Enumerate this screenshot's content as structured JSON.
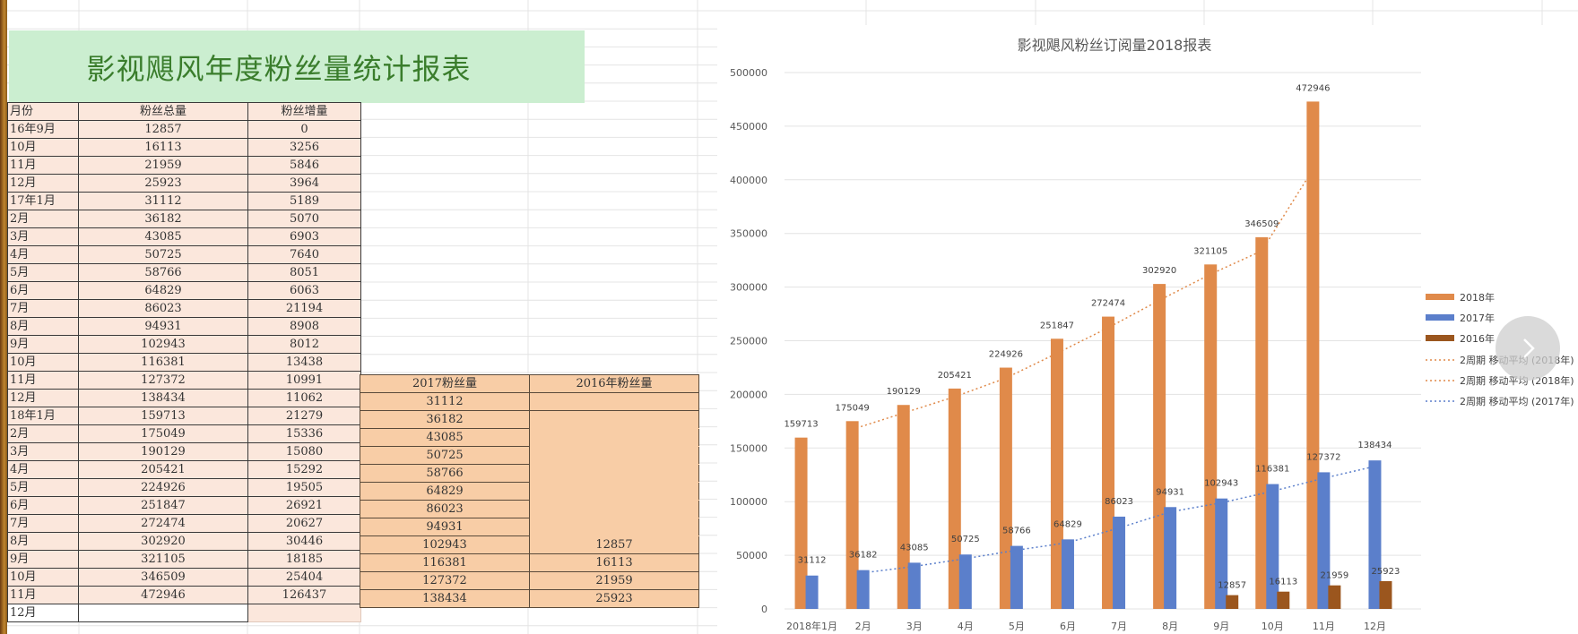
{
  "sheet_title": "影视飓风年度粉丝量统计报表",
  "table": {
    "headers": [
      "月份",
      "粉丝总量",
      "粉丝增量"
    ],
    "rows": [
      [
        "16年9月",
        "12857",
        "0"
      ],
      [
        "10月",
        "16113",
        "3256"
      ],
      [
        "11月",
        "21959",
        "5846"
      ],
      [
        "12月",
        "25923",
        "3964"
      ],
      [
        "17年1月",
        "31112",
        "5189"
      ],
      [
        "2月",
        "36182",
        "5070"
      ],
      [
        "3月",
        "43085",
        "6903"
      ],
      [
        "4月",
        "50725",
        "7640"
      ],
      [
        "5月",
        "58766",
        "8051"
      ],
      [
        "6月",
        "64829",
        "6063"
      ],
      [
        "7月",
        "86023",
        "21194"
      ],
      [
        "8月",
        "94931",
        "8908"
      ],
      [
        "9月",
        "102943",
        "8012"
      ],
      [
        "10月",
        "116381",
        "13438"
      ],
      [
        "11月",
        "127372",
        "10991"
      ],
      [
        "12月",
        "138434",
        "11062"
      ],
      [
        "18年1月",
        "159713",
        "21279"
      ],
      [
        "2月",
        "175049",
        "15336"
      ],
      [
        "3月",
        "190129",
        "15080"
      ],
      [
        "4月",
        "205421",
        "15292"
      ],
      [
        "5月",
        "224926",
        "19505"
      ],
      [
        "6月",
        "251847",
        "26921"
      ],
      [
        "7月",
        "272474",
        "20627"
      ],
      [
        "8月",
        "302920",
        "30446"
      ],
      [
        "9月",
        "321105",
        "18185"
      ],
      [
        "10月",
        "346509",
        "25404"
      ],
      [
        "11月",
        "472946",
        "126437"
      ],
      [
        "12月",
        "",
        ""
      ]
    ]
  },
  "year_table": {
    "headers": [
      "2017粉丝量",
      "2016年粉丝量"
    ],
    "col2017": [
      "31112",
      "36182",
      "43085",
      "50725",
      "58766",
      "64829",
      "86023",
      "94931",
      "102943",
      "116381",
      "127372",
      "138434"
    ],
    "col2016": [
      "",
      "",
      "",
      "",
      "",
      "",
      "",
      "",
      "12857",
      "16113",
      "21959",
      "25923"
    ]
  },
  "chart_data": {
    "type": "bar",
    "title": "影视飓风粉丝订阅量2018报表",
    "categories": [
      "2018年1月",
      "2月",
      "3月",
      "4月",
      "5月",
      "6月",
      "7月",
      "8月",
      "9月",
      "10月",
      "11月",
      "12月"
    ],
    "ylim": [
      0,
      500000
    ],
    "yticks": [
      "0",
      "50000",
      "100000",
      "150000",
      "200000",
      "250000",
      "300000",
      "350000",
      "400000",
      "450000",
      "500000"
    ],
    "grid": true,
    "legend_position": "right",
    "series": [
      {
        "name": "2018年",
        "color": "#e08a4a",
        "values": [
          159713,
          175049,
          190129,
          205421,
          224926,
          251847,
          272474,
          302920,
          321105,
          346509,
          472946,
          null
        ]
      },
      {
        "name": "2017年",
        "color": "#5b7fcb",
        "values": [
          31112,
          36182,
          43085,
          50725,
          58766,
          64829,
          86023,
          94931,
          102943,
          116381,
          127372,
          138434
        ]
      },
      {
        "name": "2016年",
        "color": "#9b561e",
        "values": [
          null,
          null,
          null,
          null,
          null,
          null,
          null,
          null,
          12857,
          16113,
          21959,
          25923
        ]
      }
    ],
    "trendlines": [
      {
        "name": "2周期 移动平均 (2018年)",
        "color": "#e08a4a"
      },
      {
        "name": "2周期 移动平均 (2018年)",
        "color": "#e08a4a"
      },
      {
        "name": "2周期 移动平均 (2017年)",
        "color": "#5b7fcb"
      }
    ]
  },
  "nav_icon": "chevron-right-icon"
}
